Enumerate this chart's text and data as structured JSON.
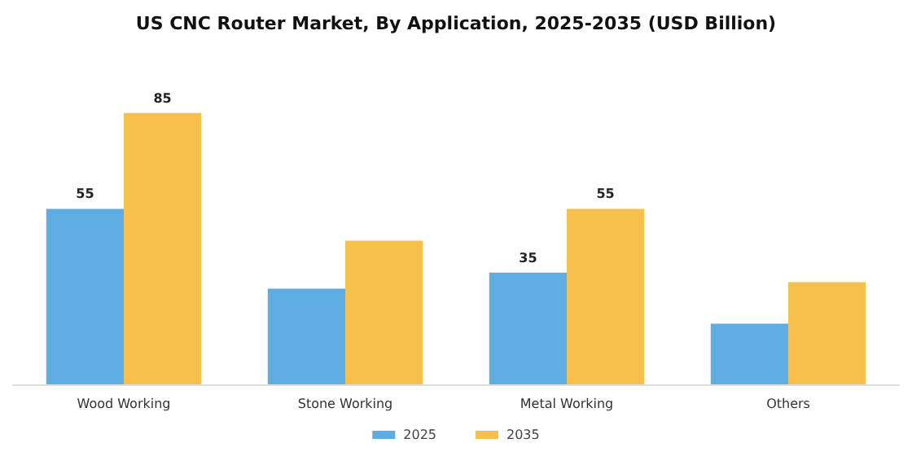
{
  "chart_data": {
    "type": "bar",
    "title": "US CNC Router Market, By Application, 2025-2035 (USD Billion)",
    "categories": [
      "Wood Working",
      "Stone Working",
      "Metal Working",
      "Others"
    ],
    "series": [
      {
        "name": "2025",
        "color": "#5dade2",
        "values": [
          55,
          30,
          35,
          19
        ],
        "value_labels": [
          "55",
          null,
          "35",
          null
        ]
      },
      {
        "name": "2035",
        "color": "#f7c04a",
        "values": [
          85,
          45,
          55,
          32
        ],
        "value_labels": [
          "85",
          null,
          "55",
          null
        ]
      }
    ],
    "legend": "bottom",
    "grid": false
  }
}
